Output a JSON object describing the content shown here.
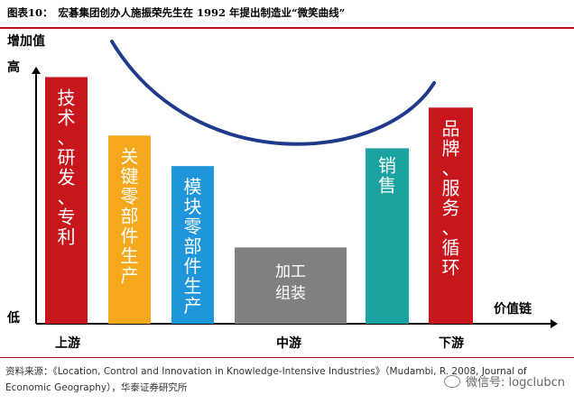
{
  "header": {
    "fig_label": "图表10：",
    "title": "宏碁集团创办人施振荣先生在 1992 年提出制造业“微笑曲线”"
  },
  "chart_data": {
    "type": "bar",
    "y_axis_title": "增加值",
    "y_top_label": "高",
    "y_bottom_label": "低",
    "x_axis_title": "价值链",
    "x_labels": [
      "上游",
      "中游",
      "下游"
    ],
    "colors": {
      "red": "#c8161d",
      "orange": "#f5a81c",
      "blue": "#1e96d9",
      "gray": "#808080",
      "teal": "#1aa3a0",
      "curve": "#1f3a8a"
    },
    "categories": [
      "技术、研发、专利",
      "关键零部件生产",
      "模块零部件生产",
      "加工组装",
      "销售",
      "品牌、服务、循环"
    ],
    "values": [
      97,
      74,
      62,
      30,
      69,
      85
    ],
    "bar_colors": [
      "red",
      "orange",
      "blue",
      "gray",
      "teal",
      "red"
    ],
    "bar_text_color": "#ffffff",
    "bars": [
      {
        "lines": [
          "技",
          "术",
          "、",
          "研",
          "发",
          "、",
          "专",
          "利"
        ]
      },
      {
        "lines": [
          "关",
          "键",
          "零",
          "部",
          "件",
          "生",
          "产"
        ]
      },
      {
        "lines": [
          "模",
          "块",
          "零",
          "部",
          "件",
          "生",
          "产"
        ]
      },
      {
        "lines": [
          "加工",
          "组装"
        ]
      },
      {
        "lines": [
          "销",
          "售"
        ]
      },
      {
        "lines": [
          "品",
          "牌",
          "、",
          "服",
          "务",
          "、",
          "循",
          "环"
        ]
      }
    ],
    "ylim": [
      0,
      100
    ],
    "curve": "smile"
  },
  "footer": {
    "source": "资料来源：《Location, Control and Innovation in Knowledge-Intensive Industries》（Mudambi, R. 2008, Journal of Economic Geography），华泰证券研究所"
  },
  "watermark": {
    "text": "微信号: logclubcn",
    "icon": "wechat-icon"
  }
}
